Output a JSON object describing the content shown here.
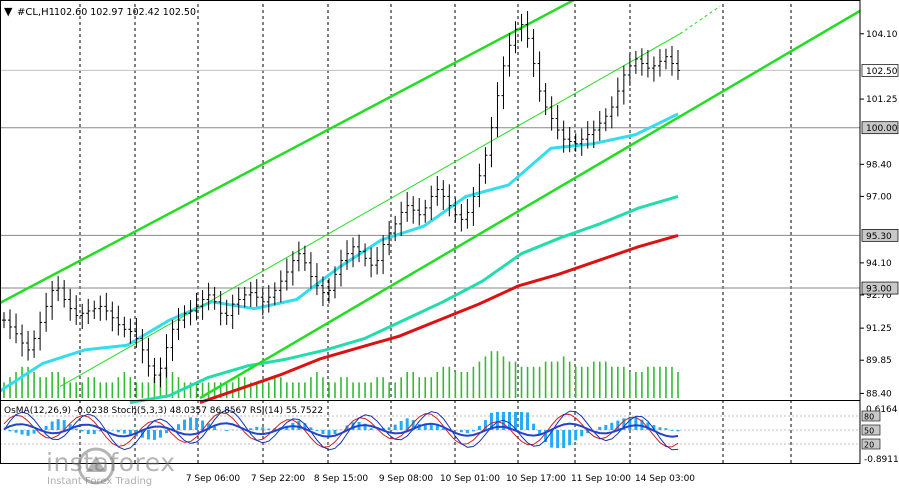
{
  "header": {
    "symbol": "#CL,H1",
    "ohlc": "102.60 102.97 102.42 102.50",
    "indicators": "OsMA(12,26,9) -0.0238  Stoch(5,3,3) 48.0357 86.8567  RSI(14) 55.7522"
  },
  "watermark": {
    "brand": "instaforex",
    "tagline": "Instant Forex Trading"
  },
  "colors": {
    "channel": "#22dd22",
    "ema50": "#33ddee",
    "ema144": "#22ddaa",
    "ema200": "#dd1111",
    "volume": "#33bb33",
    "osma": "#22aaff",
    "stoch_main": "#1133bb",
    "stoch_signal": "#cc2222"
  },
  "chart_data": {
    "type": "line",
    "title": "#CL,H1",
    "y_axis_ticks": [
      "104.10",
      "101.25",
      "98.40",
      "97.00",
      "94.10",
      "92.70",
      "91.25",
      "89.85",
      "88.40"
    ],
    "x_axis_ticks": [
      "7 Sep 06:00",
      "7 Sep 22:00",
      "8 Sep 15:00",
      "9 Sep 08:00",
      "10 Sep 01:00",
      "10 Sep 17:00",
      "11 Sep 10:00",
      "14 Sep 03:00"
    ],
    "ylim": [
      88.2,
      105.4
    ],
    "price_labels": [
      {
        "name": "current",
        "value": 102.5,
        "label": "102.50",
        "style": "current"
      },
      {
        "name": "level-100",
        "value": 100.0,
        "label": "100.00",
        "style": "level"
      },
      {
        "name": "level-95-30",
        "value": 95.3,
        "label": "95.30",
        "style": "level"
      },
      {
        "name": "level-93",
        "value": 93.0,
        "label": "93.00",
        "style": "level"
      }
    ],
    "series": [
      {
        "name": "price",
        "values": [
          91.6,
          91.3,
          91.0,
          90.6,
          90.3,
          90.8,
          91.5,
          92.2,
          92.9,
          93.0,
          92.5,
          92.1,
          91.8,
          91.9,
          92.0,
          92.1,
          92.2,
          92.0,
          91.7,
          91.4,
          91.2,
          91.1,
          90.8,
          90.3,
          89.6,
          89.2,
          89.5,
          90.4,
          91.2,
          91.6,
          91.9,
          92.0,
          92.2,
          92.5,
          92.7,
          92.4,
          91.9,
          91.8,
          92.3,
          92.5,
          92.7,
          92.8,
          92.6,
          92.4,
          92.6,
          92.9,
          93.3,
          93.7,
          94.2,
          94.5,
          94.1,
          93.5,
          93.1,
          92.8,
          92.9,
          93.6,
          94.2,
          94.5,
          94.8,
          94.6,
          94.3,
          94.0,
          94.2,
          94.9,
          95.4,
          95.8,
          96.3,
          96.6,
          96.4,
          96.2,
          96.5,
          97.0,
          97.3,
          97.0,
          96.6,
          96.2,
          96.0,
          96.3,
          97.0,
          97.9,
          98.8,
          100.0,
          101.4,
          102.7,
          103.6,
          104.3,
          104.5,
          103.9,
          102.8,
          101.6,
          100.9,
          100.4,
          99.9,
          99.5,
          99.4,
          99.3,
          99.5,
          99.7,
          99.9,
          100.2,
          100.5,
          100.9,
          101.6,
          102.3,
          102.7,
          103.0,
          102.8,
          102.6,
          102.7,
          102.9,
          103.1,
          102.8,
          102.5
        ]
      },
      {
        "name": "EMA50",
        "values": [
          88.5,
          89.7,
          90.3,
          90.5,
          91.6,
          92.4,
          92.1,
          92.5,
          93.9,
          95.1,
          95.7,
          97.0,
          97.5,
          99.1,
          99.3,
          99.7,
          100.6
        ]
      },
      {
        "name": "EMA144",
        "values": [
          88.0,
          88.3,
          89.1,
          89.6,
          89.9,
          90.3,
          90.8,
          91.6,
          92.4,
          93.3,
          94.5,
          95.2,
          95.8,
          96.5,
          97.0
        ]
      },
      {
        "name": "EMA200",
        "values": [
          88.0,
          88.6,
          89.2,
          89.9,
          90.4,
          90.9,
          91.6,
          92.3,
          93.1,
          93.6,
          94.2,
          94.8,
          95.3
        ]
      }
    ],
    "volume": [
      3,
      4,
      5,
      6,
      6,
      5,
      4,
      4,
      5,
      5,
      4,
      3,
      3,
      3,
      4,
      4,
      3,
      3,
      3,
      4,
      5,
      4,
      3,
      3,
      3,
      4,
      5,
      6,
      5,
      4,
      3,
      3,
      3,
      3,
      3,
      3,
      3,
      3,
      3,
      4,
      4,
      3,
      3,
      3,
      3,
      4,
      4,
      3,
      3,
      3,
      3,
      4,
      5,
      4,
      3,
      3,
      4,
      4,
      3,
      3,
      3,
      3,
      4,
      4,
      3,
      3,
      4,
      5,
      5,
      4,
      4,
      4,
      5,
      6,
      6,
      5,
      5,
      5,
      6,
      7,
      8,
      9,
      9,
      8,
      7,
      7,
      6,
      6,
      6,
      6,
      7,
      7,
      7,
      8,
      7,
      6,
      6,
      6,
      7,
      7,
      7,
      6,
      6,
      6,
      5,
      5,
      5,
      6,
      6,
      6,
      6,
      6,
      5
    ],
    "oscillator_ticks": [
      "0.6164",
      "-0.8911"
    ],
    "stoch_levels": [
      "80",
      "50",
      "20"
    ]
  }
}
